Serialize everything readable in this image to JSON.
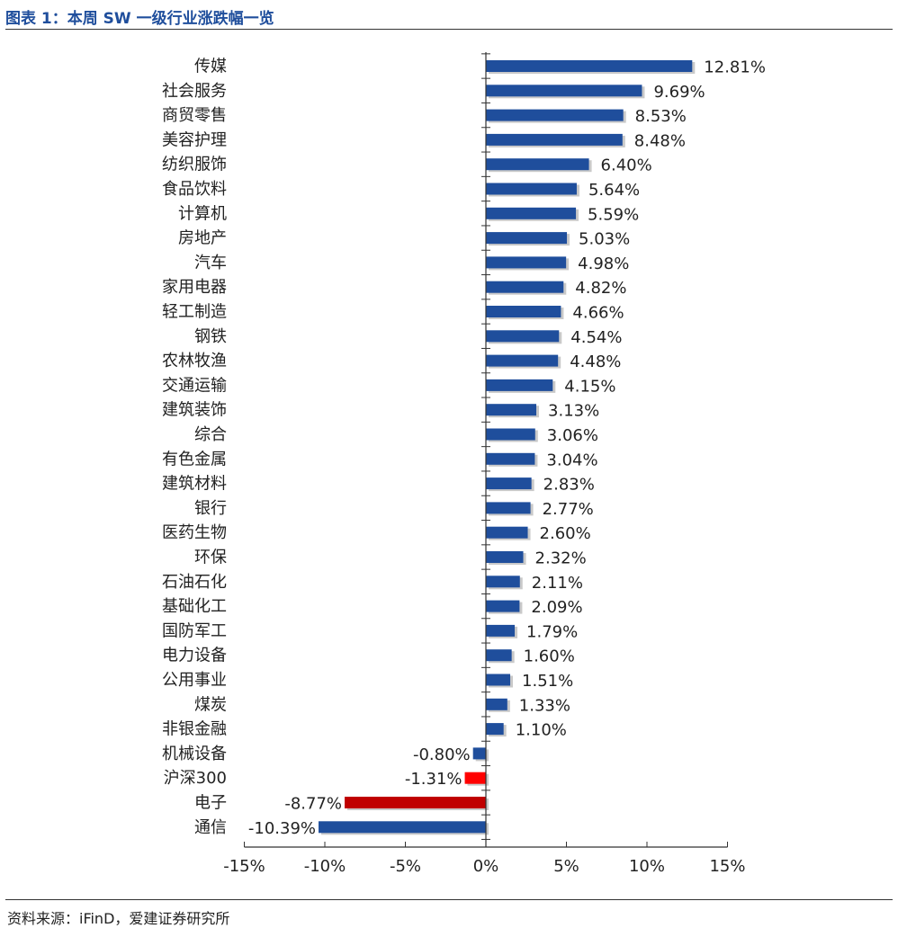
{
  "header": {
    "title": "图表 1：本周 SW 一级行业涨跌幅一览"
  },
  "footer": {
    "source": "资料来源：iFinD，爱建证券研究所"
  },
  "colors": {
    "positive": "#1f4e9c",
    "negative_industry": "#1f4e9c",
    "benchmark": "#ff0000",
    "electronics": "#c00000",
    "title": "#1f4e9c"
  },
  "chart_data": {
    "type": "bar",
    "orientation": "horizontal",
    "title": "图表 1：本周 SW 一级行业涨跌幅一览",
    "xlabel": "",
    "ylabel": "",
    "xlim": [
      -15,
      15
    ],
    "x_ticks": [
      -15,
      -10,
      -5,
      0,
      5,
      10,
      15
    ],
    "x_tick_labels": [
      "-15%",
      "-10%",
      "-5%",
      "0%",
      "5%",
      "10%",
      "15%"
    ],
    "grid": false,
    "categories": [
      "传媒",
      "社会服务",
      "商贸零售",
      "美容护理",
      "纺织服饰",
      "食品饮料",
      "计算机",
      "房地产",
      "汽车",
      "家用电器",
      "轻工制造",
      "钢铁",
      "农林牧渔",
      "交通运输",
      "建筑装饰",
      "综合",
      "有色金属",
      "建筑材料",
      "银行",
      "医药生物",
      "环保",
      "石油石化",
      "基础化工",
      "国防军工",
      "电力设备",
      "公用事业",
      "煤炭",
      "非银金融",
      "机械设备",
      "沪深300",
      "电子",
      "通信"
    ],
    "values": [
      12.81,
      9.69,
      8.53,
      8.48,
      6.4,
      5.64,
      5.59,
      5.03,
      4.98,
      4.82,
      4.66,
      4.54,
      4.48,
      4.15,
      3.13,
      3.06,
      3.04,
      2.83,
      2.77,
      2.6,
      2.32,
      2.11,
      2.09,
      1.79,
      1.6,
      1.51,
      1.33,
      1.1,
      -0.8,
      -1.31,
      -8.77,
      -10.39
    ],
    "value_labels": [
      "12.81%",
      "9.69%",
      "8.53%",
      "8.48%",
      "6.40%",
      "5.64%",
      "5.59%",
      "5.03%",
      "4.98%",
      "4.82%",
      "4.66%",
      "4.54%",
      "4.48%",
      "4.15%",
      "3.13%",
      "3.06%",
      "3.04%",
      "2.83%",
      "2.77%",
      "2.60%",
      "2.32%",
      "2.11%",
      "2.09%",
      "1.79%",
      "1.60%",
      "1.51%",
      "1.33%",
      "1.10%",
      "-0.80%",
      "-1.31%",
      "-8.77%",
      "-10.39%"
    ],
    "bar_color_keys": [
      "positive",
      "positive",
      "positive",
      "positive",
      "positive",
      "positive",
      "positive",
      "positive",
      "positive",
      "positive",
      "positive",
      "positive",
      "positive",
      "positive",
      "positive",
      "positive",
      "positive",
      "positive",
      "positive",
      "positive",
      "positive",
      "positive",
      "positive",
      "positive",
      "positive",
      "positive",
      "positive",
      "positive",
      "negative_industry",
      "benchmark",
      "electronics",
      "negative_industry"
    ]
  }
}
